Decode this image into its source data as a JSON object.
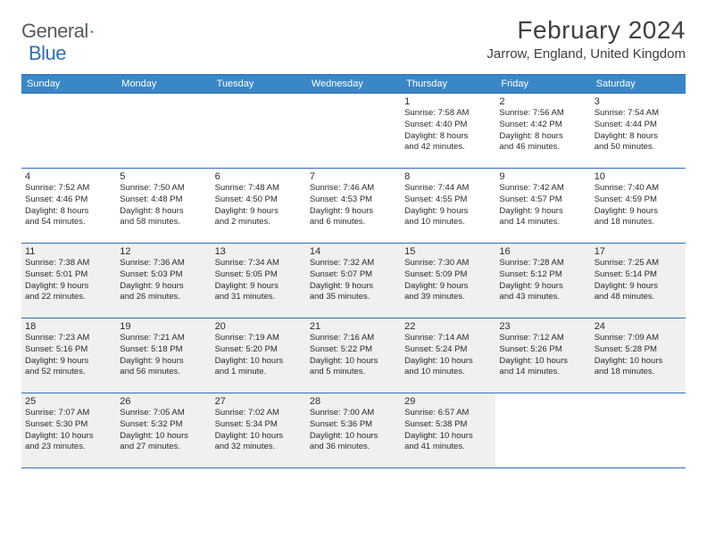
{
  "brand": {
    "word1": "General",
    "word2": "Blue"
  },
  "title": "February 2024",
  "location": "Jarrow, England, United Kingdom",
  "dayHeaders": [
    "Sunday",
    "Monday",
    "Tuesday",
    "Wednesday",
    "Thursday",
    "Friday",
    "Saturday"
  ],
  "colors": {
    "headerBg": "#3a87c7",
    "border": "#2f6fb3",
    "shadedBg": "#f0f0f0",
    "text": "#2b2b2b",
    "titleText": "#404040",
    "logoGray": "#5a5a5a",
    "logoBlue": "#2f6fb3"
  },
  "weeks": [
    [
      null,
      null,
      null,
      null,
      {
        "n": "1",
        "sunrise": "Sunrise: 7:58 AM",
        "sunset": "Sunset: 4:40 PM",
        "day1": "Daylight: 8 hours",
        "day2": "and 42 minutes."
      },
      {
        "n": "2",
        "sunrise": "Sunrise: 7:56 AM",
        "sunset": "Sunset: 4:42 PM",
        "day1": "Daylight: 8 hours",
        "day2": "and 46 minutes."
      },
      {
        "n": "3",
        "sunrise": "Sunrise: 7:54 AM",
        "sunset": "Sunset: 4:44 PM",
        "day1": "Daylight: 8 hours",
        "day2": "and 50 minutes."
      }
    ],
    [
      {
        "n": "4",
        "sunrise": "Sunrise: 7:52 AM",
        "sunset": "Sunset: 4:46 PM",
        "day1": "Daylight: 8 hours",
        "day2": "and 54 minutes."
      },
      {
        "n": "5",
        "sunrise": "Sunrise: 7:50 AM",
        "sunset": "Sunset: 4:48 PM",
        "day1": "Daylight: 8 hours",
        "day2": "and 58 minutes."
      },
      {
        "n": "6",
        "sunrise": "Sunrise: 7:48 AM",
        "sunset": "Sunset: 4:50 PM",
        "day1": "Daylight: 9 hours",
        "day2": "and 2 minutes."
      },
      {
        "n": "7",
        "sunrise": "Sunrise: 7:46 AM",
        "sunset": "Sunset: 4:53 PM",
        "day1": "Daylight: 9 hours",
        "day2": "and 6 minutes."
      },
      {
        "n": "8",
        "sunrise": "Sunrise: 7:44 AM",
        "sunset": "Sunset: 4:55 PM",
        "day1": "Daylight: 9 hours",
        "day2": "and 10 minutes."
      },
      {
        "n": "9",
        "sunrise": "Sunrise: 7:42 AM",
        "sunset": "Sunset: 4:57 PM",
        "day1": "Daylight: 9 hours",
        "day2": "and 14 minutes."
      },
      {
        "n": "10",
        "sunrise": "Sunrise: 7:40 AM",
        "sunset": "Sunset: 4:59 PM",
        "day1": "Daylight: 9 hours",
        "day2": "and 18 minutes."
      }
    ],
    [
      {
        "n": "11",
        "sunrise": "Sunrise: 7:38 AM",
        "sunset": "Sunset: 5:01 PM",
        "day1": "Daylight: 9 hours",
        "day2": "and 22 minutes.",
        "shaded": true
      },
      {
        "n": "12",
        "sunrise": "Sunrise: 7:36 AM",
        "sunset": "Sunset: 5:03 PM",
        "day1": "Daylight: 9 hours",
        "day2": "and 26 minutes.",
        "shaded": true
      },
      {
        "n": "13",
        "sunrise": "Sunrise: 7:34 AM",
        "sunset": "Sunset: 5:05 PM",
        "day1": "Daylight: 9 hours",
        "day2": "and 31 minutes.",
        "shaded": true
      },
      {
        "n": "14",
        "sunrise": "Sunrise: 7:32 AM",
        "sunset": "Sunset: 5:07 PM",
        "day1": "Daylight: 9 hours",
        "day2": "and 35 minutes.",
        "shaded": true
      },
      {
        "n": "15",
        "sunrise": "Sunrise: 7:30 AM",
        "sunset": "Sunset: 5:09 PM",
        "day1": "Daylight: 9 hours",
        "day2": "and 39 minutes.",
        "shaded": true
      },
      {
        "n": "16",
        "sunrise": "Sunrise: 7:28 AM",
        "sunset": "Sunset: 5:12 PM",
        "day1": "Daylight: 9 hours",
        "day2": "and 43 minutes.",
        "shaded": true
      },
      {
        "n": "17",
        "sunrise": "Sunrise: 7:25 AM",
        "sunset": "Sunset: 5:14 PM",
        "day1": "Daylight: 9 hours",
        "day2": "and 48 minutes.",
        "shaded": true
      }
    ],
    [
      {
        "n": "18",
        "sunrise": "Sunrise: 7:23 AM",
        "sunset": "Sunset: 5:16 PM",
        "day1": "Daylight: 9 hours",
        "day2": "and 52 minutes.",
        "shaded": true
      },
      {
        "n": "19",
        "sunrise": "Sunrise: 7:21 AM",
        "sunset": "Sunset: 5:18 PM",
        "day1": "Daylight: 9 hours",
        "day2": "and 56 minutes.",
        "shaded": true
      },
      {
        "n": "20",
        "sunrise": "Sunrise: 7:19 AM",
        "sunset": "Sunset: 5:20 PM",
        "day1": "Daylight: 10 hours",
        "day2": "and 1 minute.",
        "shaded": true
      },
      {
        "n": "21",
        "sunrise": "Sunrise: 7:16 AM",
        "sunset": "Sunset: 5:22 PM",
        "day1": "Daylight: 10 hours",
        "day2": "and 5 minutes.",
        "shaded": true
      },
      {
        "n": "22",
        "sunrise": "Sunrise: 7:14 AM",
        "sunset": "Sunset: 5:24 PM",
        "day1": "Daylight: 10 hours",
        "day2": "and 10 minutes.",
        "shaded": true
      },
      {
        "n": "23",
        "sunrise": "Sunrise: 7:12 AM",
        "sunset": "Sunset: 5:26 PM",
        "day1": "Daylight: 10 hours",
        "day2": "and 14 minutes.",
        "shaded": true
      },
      {
        "n": "24",
        "sunrise": "Sunrise: 7:09 AM",
        "sunset": "Sunset: 5:28 PM",
        "day1": "Daylight: 10 hours",
        "day2": "and 18 minutes.",
        "shaded": true
      }
    ],
    [
      {
        "n": "25",
        "sunrise": "Sunrise: 7:07 AM",
        "sunset": "Sunset: 5:30 PM",
        "day1": "Daylight: 10 hours",
        "day2": "and 23 minutes.",
        "shaded": true
      },
      {
        "n": "26",
        "sunrise": "Sunrise: 7:05 AM",
        "sunset": "Sunset: 5:32 PM",
        "day1": "Daylight: 10 hours",
        "day2": "and 27 minutes.",
        "shaded": true
      },
      {
        "n": "27",
        "sunrise": "Sunrise: 7:02 AM",
        "sunset": "Sunset: 5:34 PM",
        "day1": "Daylight: 10 hours",
        "day2": "and 32 minutes.",
        "shaded": true
      },
      {
        "n": "28",
        "sunrise": "Sunrise: 7:00 AM",
        "sunset": "Sunset: 5:36 PM",
        "day1": "Daylight: 10 hours",
        "day2": "and 36 minutes.",
        "shaded": true
      },
      {
        "n": "29",
        "sunrise": "Sunrise: 6:57 AM",
        "sunset": "Sunset: 5:38 PM",
        "day1": "Daylight: 10 hours",
        "day2": "and 41 minutes.",
        "shaded": true
      },
      null,
      null
    ]
  ]
}
